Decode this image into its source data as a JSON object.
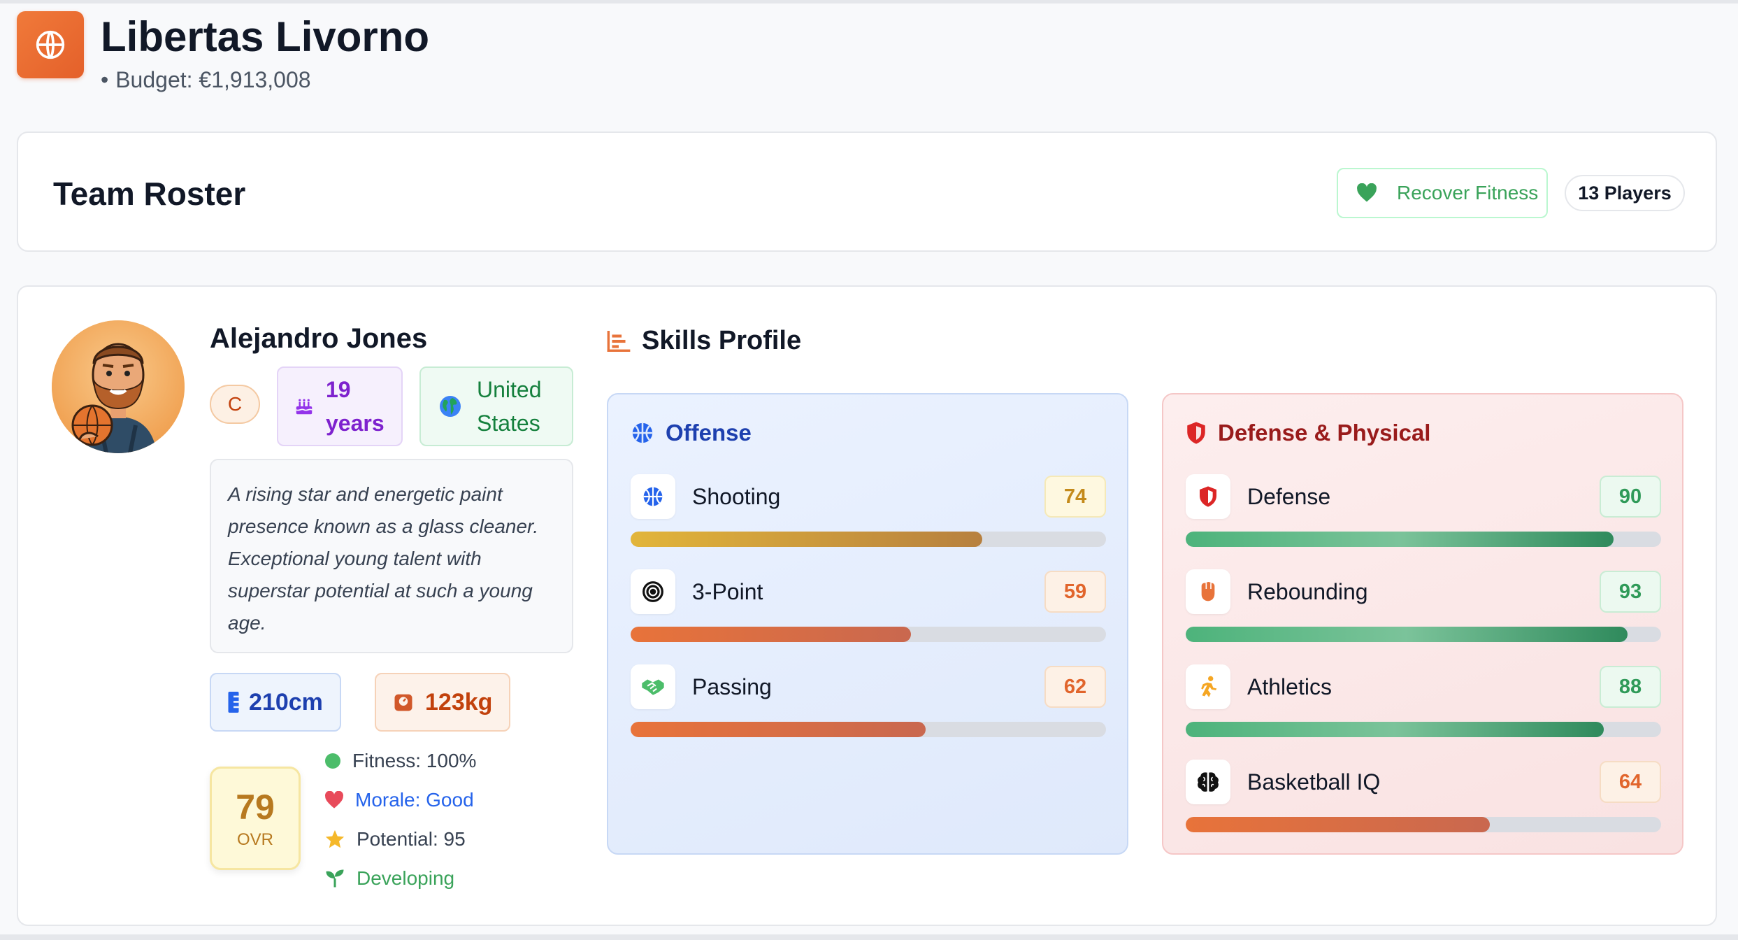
{
  "header": {
    "team_name": "Libertas Livorno",
    "budget": "Budget: €1,913,008",
    "logo_icon": "basketball-icon",
    "accent": "#e4602a"
  },
  "roster": {
    "title": "Team Roster",
    "recover_label": "Recover Fitness",
    "players_count": "13 Players"
  },
  "player": {
    "name": "Alejandro Jones",
    "position": "C",
    "age_num": "19",
    "age_unit": "years",
    "country_line1": "United",
    "country_line2": "States",
    "bio": "A rising star and energetic paint presence known as a glass cleaner. Exceptional young talent with superstar potential at such a young age.",
    "height": "210cm",
    "weight": "123kg",
    "ovr": "79",
    "ovr_label": "OVR",
    "fitness": "Fitness: 100%",
    "morale": "Morale: Good",
    "potential": "Potential: 95",
    "development": "Developing"
  },
  "skills": {
    "title": "Skills Profile",
    "offense": {
      "title": "Offense",
      "items": [
        {
          "name": "Shooting",
          "value": 74,
          "icon": "basketball-icon"
        },
        {
          "name": "3-Point",
          "value": 59,
          "icon": "target-icon"
        },
        {
          "name": "Passing",
          "value": 62,
          "icon": "handshake-icon"
        }
      ]
    },
    "defense": {
      "title": "Defense & Physical",
      "items": [
        {
          "name": "Defense",
          "value": 90,
          "icon": "shield-icon"
        },
        {
          "name": "Rebounding",
          "value": 93,
          "icon": "fist-icon"
        },
        {
          "name": "Athletics",
          "value": 88,
          "icon": "runner-icon"
        },
        {
          "name": "Basketball IQ",
          "value": 64,
          "icon": "brain-icon"
        }
      ]
    }
  }
}
